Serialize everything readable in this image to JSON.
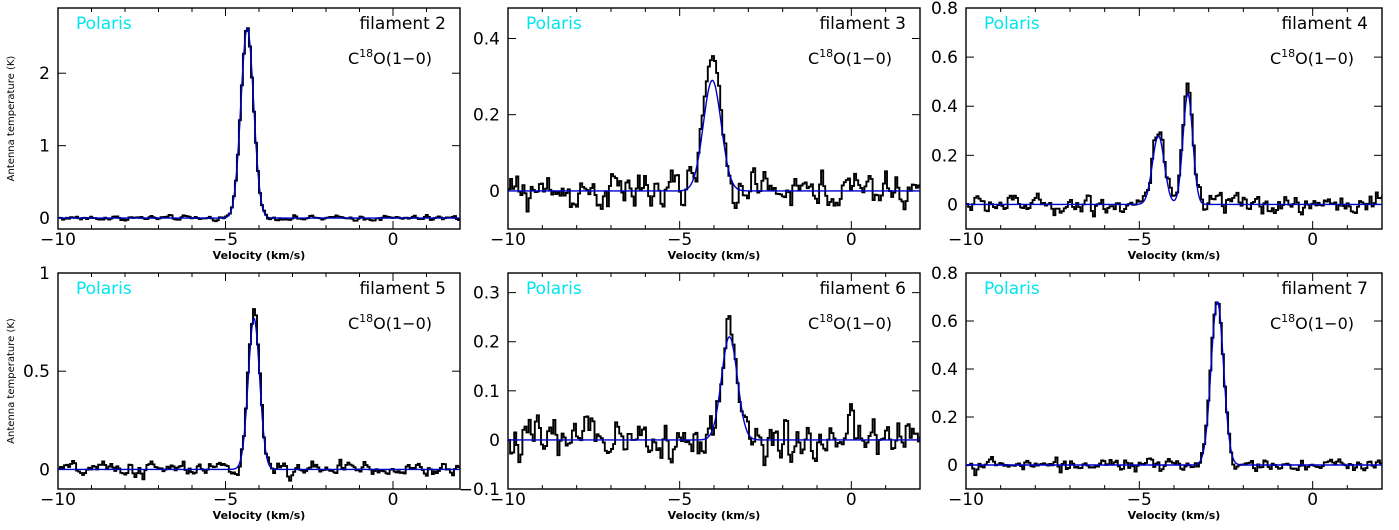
{
  "chart_data": [
    {
      "type": "line",
      "source_label": "Polaris",
      "panel_label": "filament 2",
      "line_label": {
        "base": "C",
        "sup": "18",
        "rest": "O(1−0)"
      },
      "xlabel": "Velocity (km/s)",
      "ylabel": "Antenna temperature (K)",
      "xlim": [
        -10,
        2
      ],
      "ylim": [
        -0.15,
        2.9
      ],
      "xticks": [
        -10,
        -5,
        0
      ],
      "yticks": [
        0,
        1,
        2
      ],
      "fit": [
        {
          "amp": 2.62,
          "center": -4.35,
          "sigma": 0.19
        }
      ],
      "noise": 0.035,
      "observed_scale": 1.0,
      "series": [
        {
          "color": "#000000"
        },
        {
          "color": "#0000cc"
        }
      ]
    },
    {
      "type": "line",
      "source_label": "Polaris",
      "panel_label": "filament 3",
      "line_label": {
        "base": "C",
        "sup": "18",
        "rest": "O(1−0)"
      },
      "xlabel": "Velocity (km/s)",
      "ylabel": "",
      "xlim": [
        -10,
        2
      ],
      "ylim": [
        -0.1,
        0.48
      ],
      "xticks": [
        -10,
        -5,
        0
      ],
      "yticks": [
        0,
        0.2,
        0.4
      ],
      "fit": [
        {
          "amp": 0.29,
          "center": -4.05,
          "sigma": 0.26
        }
      ],
      "noise": 0.05,
      "observed_scale": 1.15,
      "series": [
        {
          "color": "#000000"
        },
        {
          "color": "#0000cc"
        }
      ]
    },
    {
      "type": "line",
      "source_label": "Polaris",
      "panel_label": "filament 4",
      "line_label": {
        "base": "C",
        "sup": "18",
        "rest": "O(1−0)"
      },
      "xlabel": "Velocity (km/s)",
      "ylabel": "",
      "xlim": [
        -10,
        2
      ],
      "ylim": [
        -0.1,
        0.8
      ],
      "xticks": [
        -10,
        -5,
        0
      ],
      "yticks": [
        0,
        0.2,
        0.4,
        0.6,
        0.8
      ],
      "fit": [
        {
          "amp": 0.28,
          "center": -4.45,
          "sigma": 0.17
        },
        {
          "amp": 0.45,
          "center": -3.6,
          "sigma": 0.14
        }
      ],
      "noise": 0.04,
      "observed_scale": 1.08,
      "series": [
        {
          "color": "#000000"
        },
        {
          "color": "#0000cc"
        }
      ]
    },
    {
      "type": "line",
      "source_label": "Polaris",
      "panel_label": "filament 5",
      "line_label": {
        "base": "C",
        "sup": "18",
        "rest": "O(1−0)"
      },
      "xlabel": "Velocity (km/s)",
      "ylabel": "Antenna temperature (K)",
      "xlim": [
        -10,
        2
      ],
      "ylim": [
        -0.1,
        1.0
      ],
      "xticks": [
        -10,
        -5,
        0
      ],
      "yticks": [
        0,
        0.5,
        1
      ],
      "fit": [
        {
          "amp": 0.77,
          "center": -4.15,
          "sigma": 0.17
        }
      ],
      "noise": 0.04,
      "observed_scale": 1.08,
      "series": [
        {
          "color": "#000000"
        },
        {
          "color": "#0000cc"
        }
      ]
    },
    {
      "type": "line",
      "source_label": "Polaris",
      "panel_label": "filament 6",
      "line_label": {
        "base": "C",
        "sup": "18",
        "rest": "O(1−0)"
      },
      "xlabel": "Velocity (km/s)",
      "ylabel": "",
      "xlim": [
        -10,
        2
      ],
      "ylim": [
        -0.1,
        0.34
      ],
      "xticks": [
        -10,
        -5,
        0
      ],
      "yticks": [
        -0.1,
        0,
        0.1,
        0.2,
        0.3
      ],
      "fit": [
        {
          "amp": 0.21,
          "center": -3.55,
          "sigma": 0.23
        }
      ],
      "noise": 0.05,
      "observed_scale": 1.1,
      "series": [
        {
          "color": "#000000"
        },
        {
          "color": "#0000cc"
        }
      ]
    },
    {
      "type": "line",
      "source_label": "Polaris",
      "panel_label": "filament 7",
      "line_label": {
        "base": "C",
        "sup": "18",
        "rest": "O(1−0)"
      },
      "xlabel": "Velocity (km/s)",
      "ylabel": "",
      "xlim": [
        -10,
        2
      ],
      "ylim": [
        -0.1,
        0.8
      ],
      "xticks": [
        -10,
        -5,
        0
      ],
      "yticks": [
        0,
        0.2,
        0.4,
        0.6,
        0.8
      ],
      "fit": [
        {
          "amp": 0.68,
          "center": -2.75,
          "sigma": 0.18
        }
      ],
      "noise": 0.025,
      "observed_scale": 1.02,
      "series": [
        {
          "color": "#000000"
        },
        {
          "color": "#0000cc"
        }
      ]
    }
  ]
}
